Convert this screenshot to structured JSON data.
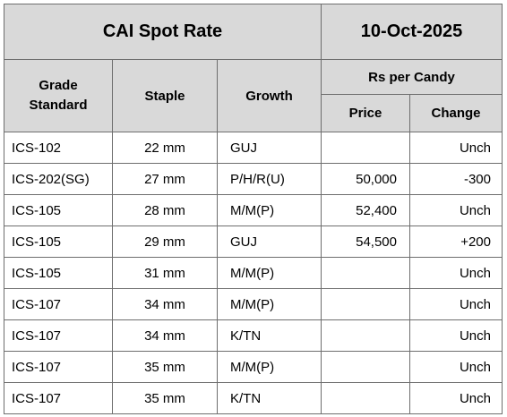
{
  "title": "CAI Spot Rate",
  "date": "10-Oct-2025",
  "headers": {
    "grade_line1": "Grade",
    "grade_line2": "Standard",
    "staple": "Staple",
    "growth": "Growth",
    "rs_per_candy": "Rs per Candy",
    "price": "Price",
    "change": "Change"
  },
  "rows": [
    {
      "grade": "ICS-102",
      "staple": "22 mm",
      "growth": "GUJ",
      "price": "",
      "change": "Unch"
    },
    {
      "grade": "ICS-202(SG)",
      "staple": "27 mm",
      "growth": "P/H/R(U)",
      "price": "50,000",
      "change": "-300"
    },
    {
      "grade": "ICS-105",
      "staple": "28 mm",
      "growth": "M/M(P)",
      "price": "52,400",
      "change": "Unch"
    },
    {
      "grade": "ICS-105",
      "staple": "29 mm",
      "growth": "GUJ",
      "price": "54,500",
      "change": "+200"
    },
    {
      "grade": "ICS-105",
      "staple": "31 mm",
      "growth": "M/M(P)",
      "price": "",
      "change": "Unch"
    },
    {
      "grade": "ICS-107",
      "staple": "34 mm",
      "growth": "M/M(P)",
      "price": "",
      "change": "Unch"
    },
    {
      "grade": "ICS-107",
      "staple": "34 mm",
      "growth": "K/TN",
      "price": "",
      "change": "Unch"
    },
    {
      "grade": "ICS-107",
      "staple": "35 mm",
      "growth": "M/M(P)",
      "price": "",
      "change": "Unch"
    },
    {
      "grade": "ICS-107",
      "staple": "35 mm",
      "growth": "K/TN",
      "price": "",
      "change": "Unch"
    }
  ]
}
